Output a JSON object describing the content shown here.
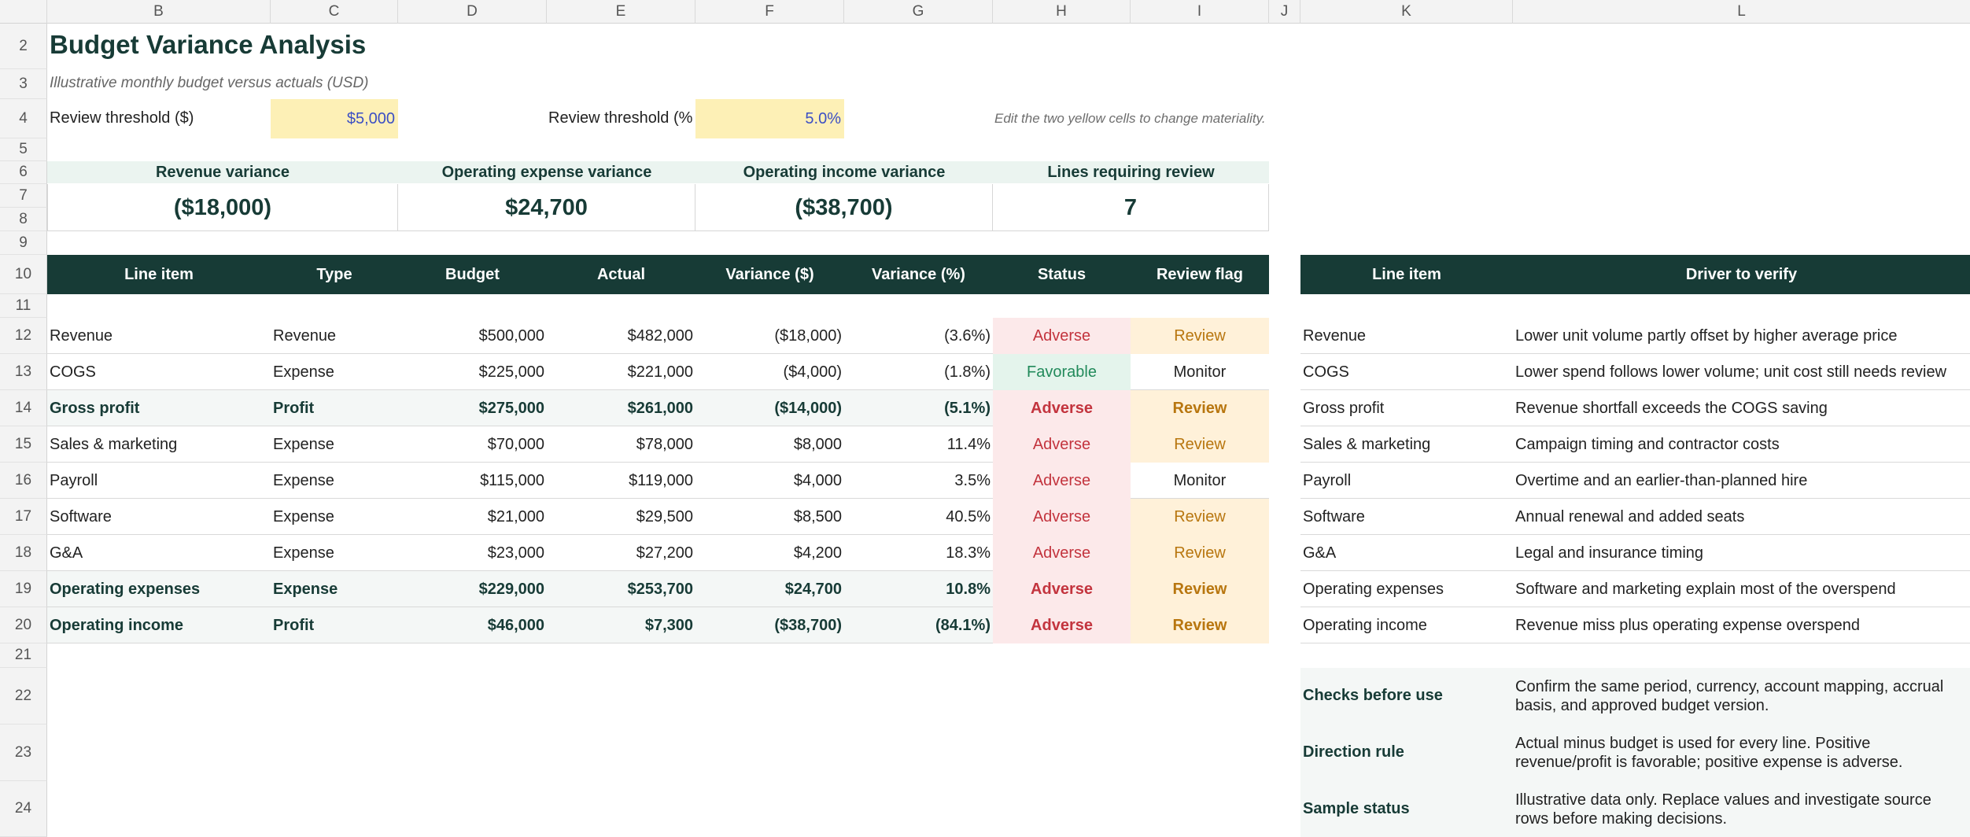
{
  "columns": [
    "B",
    "C",
    "D",
    "E",
    "F",
    "G",
    "H",
    "I",
    "J",
    "K",
    "L"
  ],
  "rows": [
    "2",
    "3",
    "4",
    "5",
    "6",
    "7",
    "8",
    "9",
    "10",
    "11",
    "12",
    "13",
    "14",
    "15",
    "16",
    "17",
    "18",
    "19",
    "20",
    "21",
    "22",
    "23",
    "24"
  ],
  "title": "Budget Variance Analysis",
  "subtitle": "Illustrative monthly budget versus actuals (USD)",
  "threshold": {
    "dollar_label": "Review threshold ($)",
    "dollar_value": "$5,000",
    "pct_label": "Review threshold (%",
    "pct_value": "5.0%",
    "note": "Edit the two yellow cells to change materiality."
  },
  "kpis": [
    {
      "label": "Revenue variance",
      "value": "($18,000)"
    },
    {
      "label": "Operating expense variance",
      "value": "$24,700"
    },
    {
      "label": "Operating income variance",
      "value": "($38,700)"
    },
    {
      "label": "Lines requiring review",
      "value": "7"
    }
  ],
  "table": {
    "headers": [
      "Line item",
      "Type",
      "Budget",
      "Actual",
      "Variance ($)",
      "Variance (%)",
      "Status",
      "Review flag"
    ],
    "rows": [
      {
        "item": "Revenue",
        "type": "Revenue",
        "budget": "$500,000",
        "actual": "$482,000",
        "var": "($18,000)",
        "pct": "(3.6%)",
        "status": "Adverse",
        "flag": "Review"
      },
      {
        "item": "COGS",
        "type": "Expense",
        "budget": "$225,000",
        "actual": "$221,000",
        "var": "($4,000)",
        "pct": "(1.8%)",
        "status": "Favorable",
        "flag": "Monitor"
      },
      {
        "item": "Gross profit",
        "type": "Profit",
        "budget": "$275,000",
        "actual": "$261,000",
        "var": "($14,000)",
        "pct": "(5.1%)",
        "status": "Adverse",
        "flag": "Review"
      },
      {
        "item": "Sales & marketing",
        "type": "Expense",
        "budget": "$70,000",
        "actual": "$78,000",
        "var": "$8,000",
        "pct": "11.4%",
        "status": "Adverse",
        "flag": "Review"
      },
      {
        "item": "Payroll",
        "type": "Expense",
        "budget": "$115,000",
        "actual": "$119,000",
        "var": "$4,000",
        "pct": "3.5%",
        "status": "Adverse",
        "flag": "Monitor"
      },
      {
        "item": "Software",
        "type": "Expense",
        "budget": "$21,000",
        "actual": "$29,500",
        "var": "$8,500",
        "pct": "40.5%",
        "status": "Adverse",
        "flag": "Review"
      },
      {
        "item": "G&A",
        "type": "Expense",
        "budget": "$23,000",
        "actual": "$27,200",
        "var": "$4,200",
        "pct": "18.3%",
        "status": "Adverse",
        "flag": "Review"
      },
      {
        "item": "Operating expenses",
        "type": "Expense",
        "budget": "$229,000",
        "actual": "$253,700",
        "var": "$24,700",
        "pct": "10.8%",
        "status": "Adverse",
        "flag": "Review"
      },
      {
        "item": "Operating income",
        "type": "Profit",
        "budget": "$46,000",
        "actual": "$7,300",
        "var": "($38,700)",
        "pct": "(84.1%)",
        "status": "Adverse",
        "flag": "Review"
      }
    ]
  },
  "drivers": {
    "headers": [
      "Line item",
      "Driver to verify"
    ],
    "rows": [
      {
        "item": "Revenue",
        "driver": "Lower unit volume partly offset by higher average price"
      },
      {
        "item": "COGS",
        "driver": "Lower spend follows lower volume; unit cost still needs review"
      },
      {
        "item": "Gross profit",
        "driver": "Revenue shortfall exceeds the COGS saving"
      },
      {
        "item": "Sales & marketing",
        "driver": "Campaign timing and contractor costs"
      },
      {
        "item": "Payroll",
        "driver": "Overtime and an earlier-than-planned hire"
      },
      {
        "item": "Software",
        "driver": "Annual renewal and added seats"
      },
      {
        "item": "G&A",
        "driver": "Legal and insurance timing"
      },
      {
        "item": "Operating expenses",
        "driver": "Software and marketing explain most of the overspend"
      },
      {
        "item": "Operating income",
        "driver": "Revenue miss plus operating expense overspend"
      }
    ]
  },
  "notes": [
    {
      "label": "Checks before use",
      "text": "Confirm the same period, currency, account mapping, accrual basis, and approved budget version."
    },
    {
      "label": "Direction rule",
      "text": "Actual minus budget is used for every line. Positive revenue/profit is favorable; positive expense is adverse."
    },
    {
      "label": "Sample status",
      "text": "Illustrative data only. Replace values and investigate source rows before making decisions."
    }
  ],
  "colors": {
    "header_bg": "#173b36",
    "yellow_input": "#fdf0b6",
    "adverse_bg": "#fce9ea",
    "adverse_text": "#c3343e",
    "favorable_bg": "#e4f4ec",
    "favorable_text": "#228a5b",
    "review_bg": "#fff1d9",
    "review_text": "#b8760f"
  }
}
